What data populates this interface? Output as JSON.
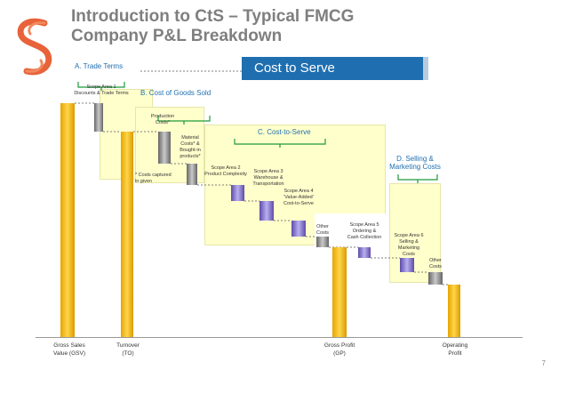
{
  "slide": {
    "title_line1": "Introduction to CtS – Typical FMCG",
    "title_line2": "Company P&L Breakdown",
    "page_number": "7",
    "highlight_box": "Cost to Serve"
  },
  "sections": {
    "a": "A. Trade Terms",
    "b": "B. Cost of Goods Sold",
    "c": "C. Cost-to-Serve",
    "d_line1": "D. Selling &",
    "d_line2": "Marketing Costs"
  },
  "annotations": {
    "scope1_l1": "Scope Area 1",
    "scope1_l2": "Discounts & Trade Terms",
    "production_l1": "Production",
    "production_l2": "Costs*",
    "material_l1": "Material",
    "material_l2": "Costs* &",
    "material_l3": "Bought-in",
    "material_l4": "products*",
    "costs_captured_l1": "* Costs captured",
    "costs_captured_l2": "in given",
    "scope2_l1": "Scope Area 2",
    "scope2_l2": "Product Complexity",
    "scope3_l1": "Scope Area 3",
    "scope3_l2": "Warehouse &",
    "scope3_l3": "Transportation",
    "scope4_l1": "Scope Area 4",
    "scope4_l2": "'Value-Added'",
    "scope4_l3": "Cost-to-Serve",
    "other_costs1_l1": "Other",
    "other_costs1_l2": "Costs",
    "scope5_l1": "Scope Area 5",
    "scope5_l2": "Ordering &",
    "scope5_l3": "Cash Collection",
    "scope6_l1": "Scope Area 6",
    "scope6_l2": "Selling &",
    "scope6_l3": "Marketing",
    "scope6_l4": "Costs",
    "other_costs2_l1": "Other",
    "other_costs2_l2": "Costs"
  },
  "axis_labels": {
    "gsv_l1": "Gross Sales",
    "gsv_l2": "Value (GSV)",
    "to_l1": "Turnover",
    "to_l2": "(TO)",
    "gp_l1": "Gross Profit",
    "gp_l2": "(GP)",
    "op_l1": "Operating",
    "op_l2": "Profit"
  },
  "colors": {
    "title_gray": "#7f7f7f",
    "accent_blue": "#1f6fb0",
    "zone_yellow": "#ffffcc",
    "gold": "#f5b800",
    "purple": "#8a7ad8",
    "gray_bar": "#9a9a9a",
    "logo_orange": "#e8623a"
  }
}
